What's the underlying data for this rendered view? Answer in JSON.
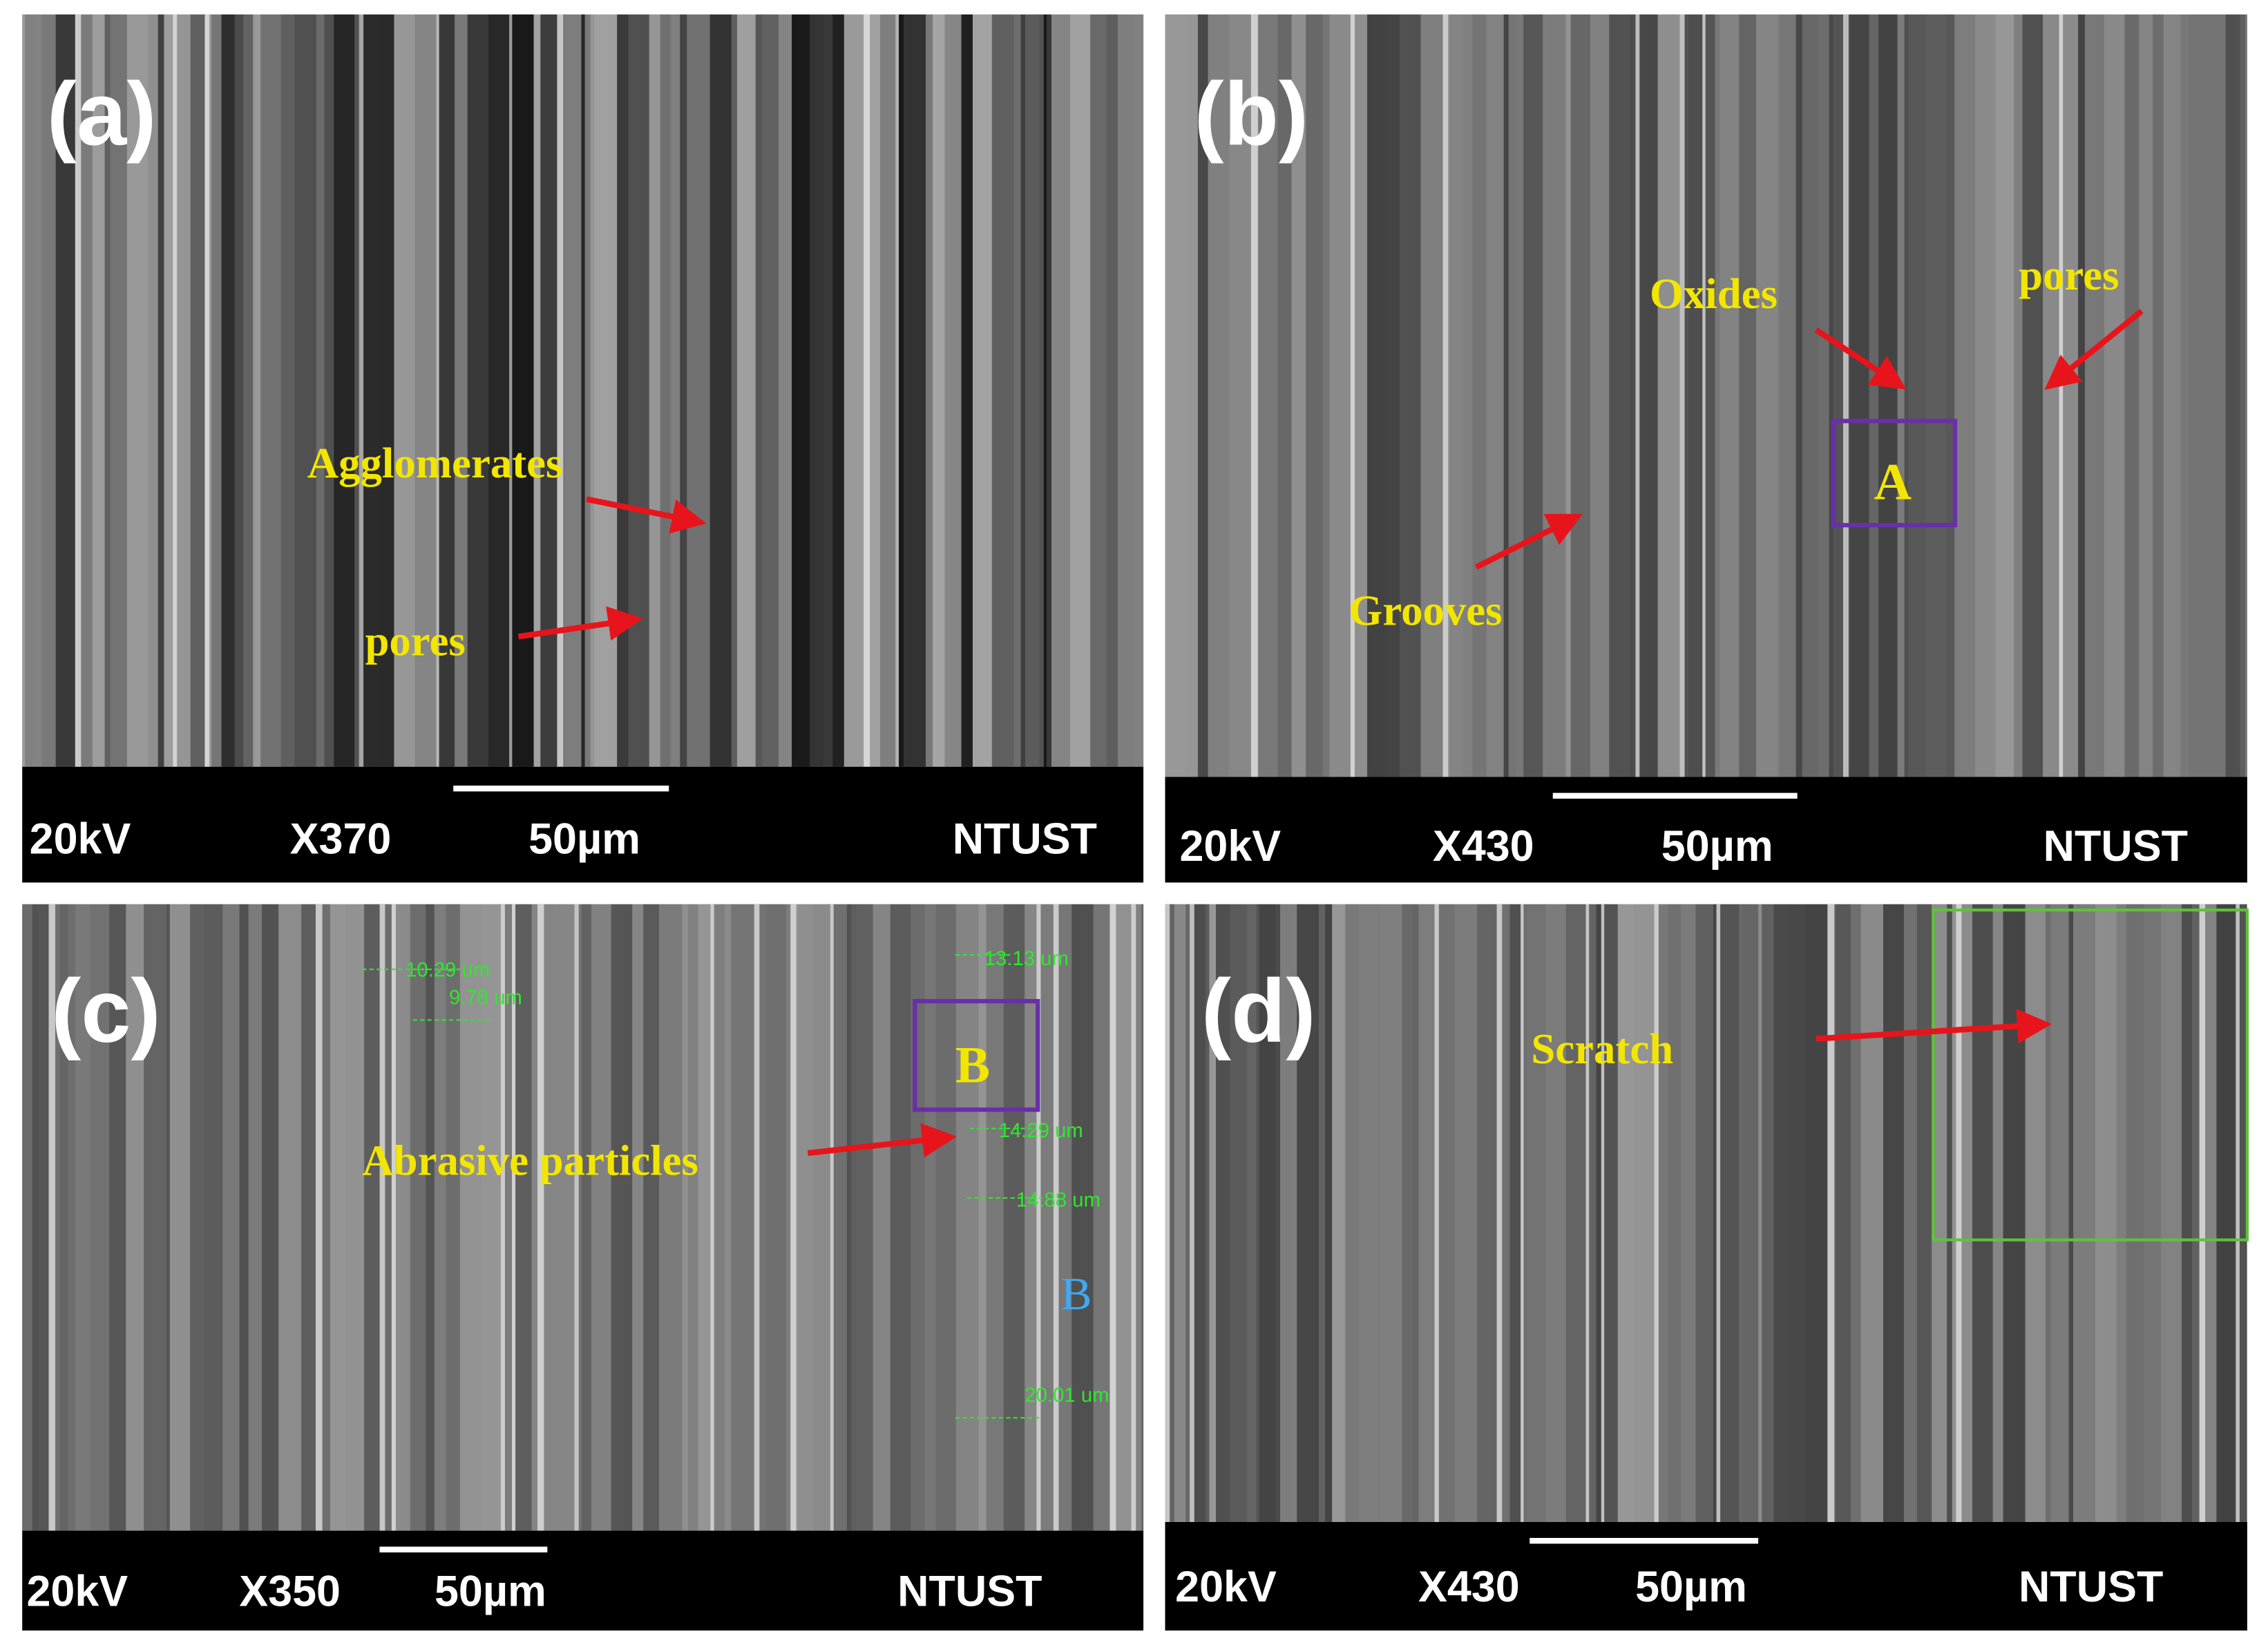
{
  "panels": [
    {
      "label": "(a)",
      "annotations": [
        "Agglomerates",
        "pores"
      ],
      "info": {
        "voltage": "20kV",
        "magnification": "X370",
        "scale": "50µm",
        "lab": "NTUST"
      }
    },
    {
      "label": "(b)",
      "annotations": [
        "Oxides",
        "pores",
        "Grooves"
      ],
      "region": "A",
      "info": {
        "voltage": "20kV",
        "magnification": "X430",
        "scale": "50µm",
        "lab": "NTUST"
      }
    },
    {
      "label": "(c)",
      "annotations": [
        "Abrasive particles"
      ],
      "region": "B",
      "region_marker": "B",
      "measurements": [
        "10.29 um",
        "9.78 um",
        "13.13 um",
        "14.29 um",
        "14.88 um",
        "20.01 um"
      ],
      "info": {
        "voltage": "20kV",
        "magnification": "X350",
        "scale": "50µm",
        "lab": "NTUST"
      }
    },
    {
      "label": "(d)",
      "annotations": [
        "Scratch"
      ],
      "info": {
        "voltage": "20kV",
        "magnification": "X430",
        "scale": "50µm",
        "lab": "NTUST"
      }
    }
  ]
}
